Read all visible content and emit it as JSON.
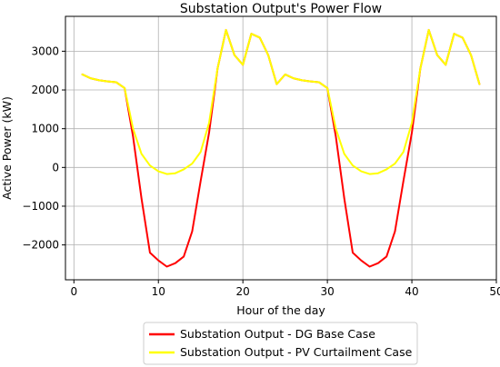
{
  "chart_data": {
    "type": "line",
    "title": "Substation Output's Power Flow",
    "xlabel": "Hour of the day",
    "ylabel": "Active Power (kW)",
    "xlim": [
      -1,
      50
    ],
    "ylim": [
      -2900,
      3900
    ],
    "xticks": [
      0,
      10,
      20,
      30,
      40,
      50
    ],
    "yticks": [
      -2000,
      -1000,
      0,
      1000,
      2000,
      3000
    ],
    "grid": true,
    "legend_position": "bottom-center, outside plot",
    "x": [
      1,
      2,
      3,
      4,
      5,
      6,
      7,
      8,
      9,
      10,
      11,
      12,
      13,
      14,
      15,
      16,
      17,
      18,
      19,
      20,
      21,
      22,
      23,
      24,
      25,
      26,
      27,
      28,
      29,
      30,
      31,
      32,
      33,
      34,
      35,
      36,
      37,
      38,
      39,
      40,
      41,
      42,
      43,
      44,
      45,
      46,
      47,
      48
    ],
    "series": [
      {
        "name": "Substation Output - DG Base Case",
        "color": "#ff0000",
        "values": [
          2400,
          2300,
          2250,
          2220,
          2200,
          2050,
          800,
          -800,
          -2200,
          -2400,
          -2560,
          -2470,
          -2300,
          -1650,
          -350,
          900,
          2550,
          3550,
          2900,
          2650,
          3450,
          3350,
          2900,
          2150,
          2400,
          2300,
          2250,
          2220,
          2200,
          2050,
          800,
          -800,
          -2200,
          -2400,
          -2560,
          -2470,
          -2300,
          -1650,
          -350,
          900,
          2550,
          3550,
          2900,
          2650,
          3450,
          3350,
          2900,
          2150
        ]
      },
      {
        "name": "Substation Output - PV Curtailment Case",
        "color": "#ffff00",
        "values": [
          2400,
          2300,
          2250,
          2220,
          2200,
          2050,
          1000,
          350,
          50,
          -100,
          -170,
          -150,
          -50,
          100,
          400,
          1150,
          2550,
          3550,
          2900,
          2650,
          3450,
          3350,
          2900,
          2150,
          2400,
          2300,
          2250,
          2220,
          2200,
          2050,
          1000,
          350,
          50,
          -100,
          -170,
          -150,
          -50,
          100,
          400,
          1150,
          2550,
          3550,
          2900,
          2650,
          3450,
          3350,
          2900,
          2150
        ]
      }
    ]
  }
}
